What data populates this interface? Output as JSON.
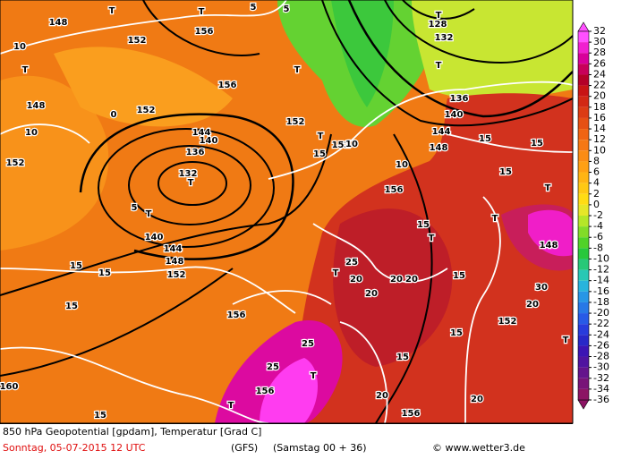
{
  "map": {
    "footer": {
      "title": "850 hPa Geopotential [gpdam], Temperatur [Grad C]",
      "date": "Sonntag, 05-07-2015  12 UTC",
      "model": "(GFS)",
      "run": "(Samstag 00 + 36)",
      "credit": "© www.wetter3.de"
    },
    "colorbar": {
      "ticks": [
        32,
        30,
        28,
        26,
        24,
        22,
        20,
        18,
        16,
        14,
        12,
        10,
        8,
        6,
        4,
        2,
        0,
        -2,
        -4,
        -6,
        -8,
        -10,
        -12,
        -14,
        -16,
        -18,
        -20,
        -22,
        -24,
        -26,
        -28,
        -30,
        -32,
        -34,
        -36
      ],
      "colors": [
        "#ff50ff",
        "#f020d0",
        "#d8009a",
        "#c8005a",
        "#b40028",
        "#c81414",
        "#d22814",
        "#dc3c14",
        "#e65014",
        "#f06414",
        "#f57814",
        "#fa8c14",
        "#ffa014",
        "#ffb414",
        "#ffc814",
        "#ffdc14",
        "#e6e628",
        "#b4e628",
        "#82dc28",
        "#50d228",
        "#28c83c",
        "#28c878",
        "#28c8b4",
        "#28b4dc",
        "#2896e6",
        "#2878e6",
        "#285ae6",
        "#283cdc",
        "#2828c8",
        "#3c14b4",
        "#5014a0",
        "#64148c",
        "#781478",
        "#8c1464"
      ]
    },
    "contour_labels": [
      "148",
      "152",
      "156",
      "T",
      "T",
      "5",
      "5",
      "T",
      "10",
      "148",
      "10",
      "152",
      "0",
      "152",
      "156",
      "144",
      "140",
      "136",
      "132",
      "T",
      "5",
      "T",
      "140",
      "144",
      "148",
      "152",
      "T",
      "152",
      "T",
      "152",
      "15",
      "10",
      "156",
      "T",
      "15",
      "15",
      "15",
      "15",
      "156",
      "25",
      "T",
      "20",
      "20",
      "20",
      "20",
      "15",
      "152",
      "15",
      "15",
      "10",
      "144",
      "148",
      "136",
      "140",
      "T",
      "132",
      "128",
      "T",
      "T",
      "T",
      "15",
      "148",
      "20",
      "30",
      "25",
      "25",
      "T",
      "156",
      "T",
      "15",
      "160",
      "20",
      "20",
      "156",
      "15",
      "15",
      "T"
    ]
  }
}
